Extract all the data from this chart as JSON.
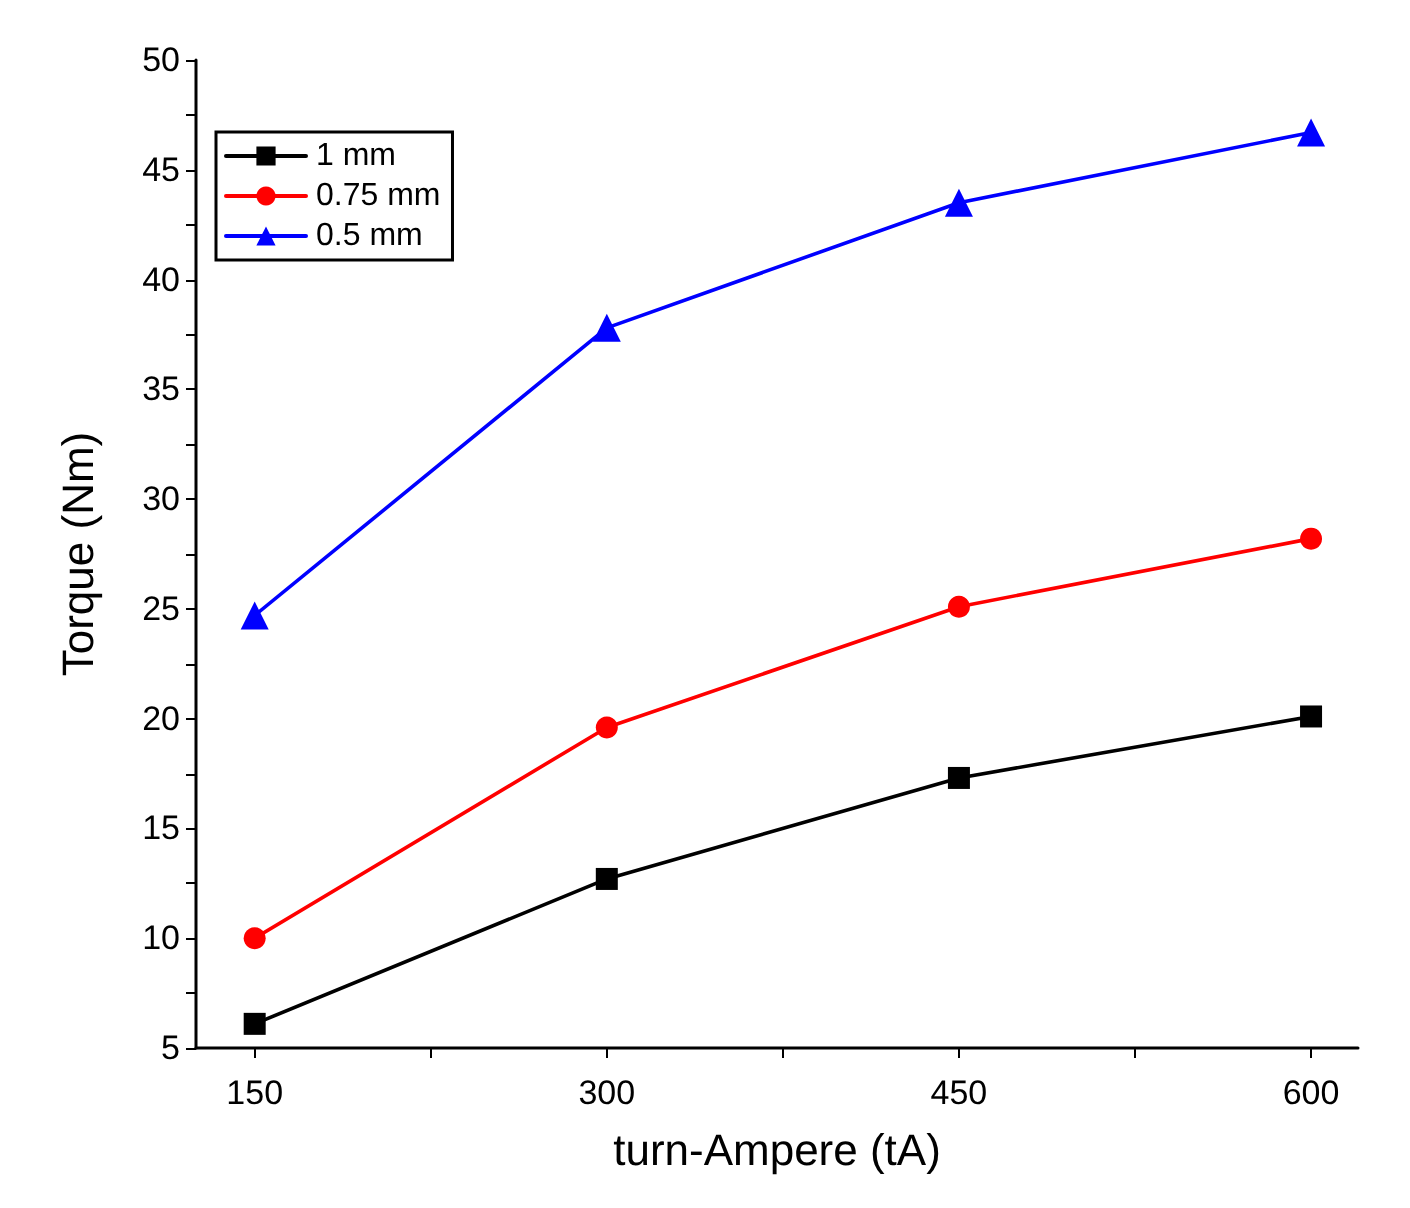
{
  "chart_data": {
    "type": "line",
    "xlabel": "turn-Ampere (tA)",
    "ylabel": "Torque (Nm)",
    "x": [
      150,
      300,
      450,
      600
    ],
    "series": [
      {
        "name": "1 mm",
        "color": "#000000",
        "marker": "square",
        "values": [
          6.1,
          12.7,
          17.3,
          20.1
        ]
      },
      {
        "name": "0.75 mm",
        "color": "#ff0000",
        "marker": "circle",
        "values": [
          10.0,
          19.6,
          25.1,
          28.2
        ]
      },
      {
        "name": "0.5 mm",
        "color": "#0000ff",
        "marker": "triangle",
        "values": [
          24.7,
          37.8,
          43.5,
          46.7
        ]
      }
    ],
    "xlim": [
      125,
      620
    ],
    "xticks": [
      150,
      {
        "value": 225,
        "label": null
      },
      300,
      {
        "value": 375,
        "label": null
      },
      450,
      {
        "value": 525,
        "label": null
      },
      600
    ],
    "ylim": [
      5,
      50
    ],
    "yticks": [
      5,
      {
        "value": 7.5,
        "label": null
      },
      10,
      {
        "value": 12.5,
        "label": null
      },
      15,
      {
        "value": 17.5,
        "label": null
      },
      20,
      {
        "value": 22.5,
        "label": null
      },
      25,
      {
        "value": 27.5,
        "label": null
      },
      30,
      {
        "value": 32.5,
        "label": null
      },
      35,
      {
        "value": 37.5,
        "label": null
      },
      40,
      {
        "value": 42.5,
        "label": null
      },
      45,
      {
        "value": 47.5,
        "label": null
      },
      50
    ],
    "grid": false,
    "legend": "top left",
    "line_style": "solid"
  }
}
